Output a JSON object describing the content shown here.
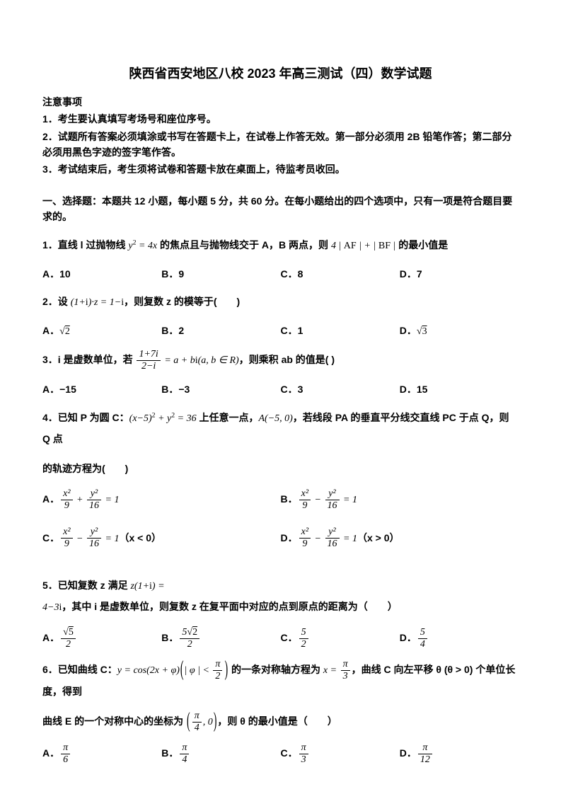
{
  "title": "陕西省西安地区八校 2023 年高三测试（四）数学试题",
  "notice": {
    "heading": "注意事项",
    "items": [
      "1．考生要认真填写考场号和座位序号。",
      "2．试题所有答案必须填涂或书写在答题卡上，在试卷上作答无效。第一部分必须用 2B 铅笔作答；第二部分必须用黑色字迹的签字笔作答。",
      "3．考试结束后，考生须将试卷和答题卡放在桌面上，待监考员收回。"
    ]
  },
  "section1": "一、选择题：本题共 12 小题，每小题 5 分，共 60 分。在每小题给出的四个选项中，只有一项是符合题目要求的。",
  "q1": {
    "stem_pre": "1．直线 l 过抛物线 ",
    "math1": "y² = 4x",
    "stem_mid": " 的焦点且与抛物线交于 A，B 两点，则 ",
    "math2": "4|AF| + |BF|",
    "stem_post": " 的最小值是",
    "A": "A．10",
    "B": "B．9",
    "C": "C．8",
    "D": "D．7"
  },
  "q2": {
    "stem_pre": "2．设 ",
    "math1": "(1+i)·z = 1−i",
    "stem_post": "，则复数 z 的模等于(　　)",
    "A_label": "A．",
    "A_val": "2",
    "B": "B．2",
    "C": "C．1",
    "D_label": "D．",
    "D_val": "3"
  },
  "q3": {
    "stem_pre": "3．i 是虚数单位，若 ",
    "frac_num": "1+7i",
    "frac_den": "2−i",
    "stem_mid": " = a + bi (a, b ∈ R)",
    "stem_post": "，则乘积 ab 的值是( )",
    "A": "A．−15",
    "B": "B．−3",
    "C": "C．3",
    "D": "D．15"
  },
  "q4": {
    "stem_pre": "4．已知 P 为圆 C：",
    "math1": "(x−5)² + y² = 36",
    "stem_mid1": " 上任意一点，",
    "math2": "A(−5, 0)",
    "stem_mid2": "，若线段 PA 的垂直平分线交直线 PC 于点 Q，则 Q 点",
    "cont": "的轨迹方程为(　　)",
    "A_pre": "A．",
    "B_pre": "B．",
    "C_pre": "C．",
    "D_pre": "D．",
    "x2": "x²",
    "y2": "y²",
    "n9": "9",
    "n16": "16",
    "eq1": " = 1",
    "cond_xlt0": "（x < 0）",
    "cond_xgt0": "（x > 0）"
  },
  "q5": {
    "stem_pre": "5．已知复数 z 满足 ",
    "math1": "z(1+i) = 4−3i",
    "stem_post": "，其中 i 是虚数单位，则复数 z 在复平面中对应的点到原点的距离为（　　）",
    "A_pre": "A．",
    "A_num": "5",
    "A_den": "2",
    "B_pre": "B．",
    "B_num_5": "5",
    "B_num_2": "2",
    "B_den": "2",
    "C_pre": "C．",
    "C_num": "5",
    "C_den": "2",
    "D_pre": "D．",
    "D_num": "5",
    "D_den": "4"
  },
  "q6": {
    "stem_pre": "6．已知曲线 C：",
    "math_y": "y = cos(2x + φ)",
    "phi_lt": "|φ| < ",
    "pi": "π",
    "two": "2",
    "stem_mid1": " 的一条对称轴方程为 ",
    "math_x": "x = ",
    "three": "3",
    "stem_mid2": "，曲线 C 向左平移 θ (θ > 0) 个单位长度，得到",
    "cont_pre": "曲线 E 的一个对称中心的坐标为 ",
    "four": "4",
    "zero": ", 0",
    "cont_post": "，则 θ 的最小值是（　　）",
    "A_pre": "A．",
    "A_den": "6",
    "B_pre": "B．",
    "B_den": "4",
    "C_pre": "C．",
    "C_den": "3",
    "D_pre": "D．",
    "D_den": "12"
  }
}
